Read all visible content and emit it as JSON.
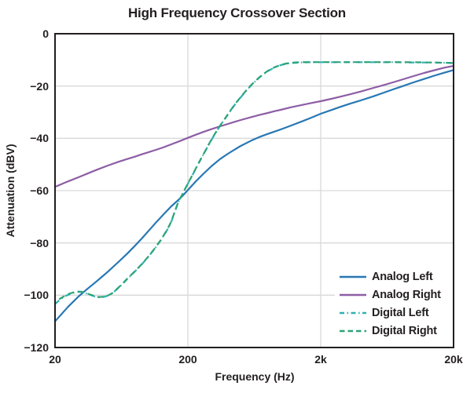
{
  "title": "High Frequency Crossover Section",
  "chart_data": {
    "type": "line",
    "title": "High Frequency Crossover Section",
    "xlabel": "Frequency (Hz)",
    "ylabel": "Attenuation (dBV)",
    "x_scale": "log",
    "xlim": [
      20,
      20000
    ],
    "ylim": [
      -120,
      0
    ],
    "grid": {
      "x_gridlines": [
        200,
        2000
      ],
      "y_gridlines": [
        -20,
        -40,
        -60,
        -80,
        -100
      ],
      "color": "#d9d9d9"
    },
    "frame_color": "#231f20",
    "x_ticks": [
      {
        "value": 20,
        "label": "20"
      },
      {
        "value": 200,
        "label": "200"
      },
      {
        "value": 2000,
        "label": "2k"
      },
      {
        "value": 20000,
        "label": "20k"
      }
    ],
    "y_ticks": [
      {
        "value": 0,
        "label": "0"
      },
      {
        "value": -20,
        "label": "−20"
      },
      {
        "value": -40,
        "label": "−40"
      },
      {
        "value": -60,
        "label": "−60"
      },
      {
        "value": -80,
        "label": "−80"
      },
      {
        "value": -100,
        "label": "−100"
      },
      {
        "value": -120,
        "label": "−120"
      }
    ],
    "legend": {
      "position": "lower right"
    },
    "series": [
      {
        "name": "Analog Left",
        "color": "#2777b4",
        "dash": "solid",
        "points": [
          [
            20,
            -110
          ],
          [
            25,
            -104.5
          ],
          [
            30,
            -100.5
          ],
          [
            35,
            -97.6
          ],
          [
            40,
            -95.2
          ],
          [
            45,
            -93
          ],
          [
            50,
            -91
          ],
          [
            60,
            -87.3
          ],
          [
            70,
            -84.1
          ],
          [
            80,
            -81.1
          ],
          [
            90,
            -78.3
          ],
          [
            100,
            -75.7
          ],
          [
            115,
            -72.2
          ],
          [
            130,
            -69.3
          ],
          [
            150,
            -66
          ],
          [
            165,
            -64.1
          ],
          [
            180,
            -62.3
          ],
          [
            200,
            -59.8
          ],
          [
            230,
            -56.4
          ],
          [
            260,
            -53.7
          ],
          [
            300,
            -50.7
          ],
          [
            350,
            -47.9
          ],
          [
            400,
            -45.9
          ],
          [
            450,
            -44.3
          ],
          [
            500,
            -42.9
          ],
          [
            600,
            -40.9
          ],
          [
            700,
            -39.4
          ],
          [
            800,
            -38.3
          ],
          [
            900,
            -37.4
          ],
          [
            1000,
            -36.6
          ],
          [
            1200,
            -35.1
          ],
          [
            1400,
            -33.8
          ],
          [
            1700,
            -32.1
          ],
          [
            2000,
            -30.6
          ],
          [
            2400,
            -29.2
          ],
          [
            2800,
            -28
          ],
          [
            3300,
            -26.8
          ],
          [
            4000,
            -25.5
          ],
          [
            5000,
            -23.9
          ],
          [
            6000,
            -22.5
          ],
          [
            7000,
            -21.3
          ],
          [
            8000,
            -20.3
          ],
          [
            10000,
            -18.6
          ],
          [
            12000,
            -17.3
          ],
          [
            14000,
            -16.2
          ],
          [
            17000,
            -14.9
          ],
          [
            20000,
            -13.9
          ]
        ]
      },
      {
        "name": "Analog Right",
        "color": "#8d5da5",
        "dash": "solid",
        "points": [
          [
            20,
            -58.6
          ],
          [
            25,
            -56.5
          ],
          [
            30,
            -54.9
          ],
          [
            35,
            -53.5
          ],
          [
            40,
            -52.3
          ],
          [
            50,
            -50.4
          ],
          [
            60,
            -49
          ],
          [
            70,
            -47.9
          ],
          [
            80,
            -47
          ],
          [
            90,
            -46.1
          ],
          [
            100,
            -45.4
          ],
          [
            115,
            -44.4
          ],
          [
            130,
            -43.5
          ],
          [
            150,
            -42.3
          ],
          [
            175,
            -41
          ],
          [
            200,
            -39.8
          ],
          [
            230,
            -38.6
          ],
          [
            260,
            -37.6
          ],
          [
            300,
            -36.5
          ],
          [
            350,
            -35.4
          ],
          [
            400,
            -34.5
          ],
          [
            450,
            -33.7
          ],
          [
            500,
            -33
          ],
          [
            600,
            -31.9
          ],
          [
            700,
            -31
          ],
          [
            800,
            -30.3
          ],
          [
            900,
            -29.6
          ],
          [
            1000,
            -29.1
          ],
          [
            1200,
            -28.1
          ],
          [
            1400,
            -27.4
          ],
          [
            1700,
            -26.5
          ],
          [
            2000,
            -25.8
          ],
          [
            2400,
            -24.9
          ],
          [
            2800,
            -24.1
          ],
          [
            3300,
            -23.2
          ],
          [
            4000,
            -22.1
          ],
          [
            5000,
            -20.7
          ],
          [
            6000,
            -19.6
          ],
          [
            7000,
            -18.6
          ],
          [
            8000,
            -17.7
          ],
          [
            10000,
            -16.2
          ],
          [
            12000,
            -15
          ],
          [
            14000,
            -14.1
          ],
          [
            17000,
            -13
          ],
          [
            20000,
            -12.3
          ]
        ]
      },
      {
        "name": "Digital Left",
        "color": "#30b0b4",
        "dash": "dashdot",
        "points": [
          [
            20,
            -103.4
          ],
          [
            22,
            -101.5
          ],
          [
            24,
            -100.3
          ],
          [
            26,
            -99.5
          ],
          [
            28,
            -99
          ],
          [
            30,
            -98.7
          ],
          [
            32,
            -98.8
          ],
          [
            34,
            -99.2
          ],
          [
            36,
            -99.7
          ],
          [
            38,
            -100.1
          ],
          [
            40,
            -100.5
          ],
          [
            43,
            -100.8
          ],
          [
            46,
            -100.7
          ],
          [
            50,
            -100.2
          ],
          [
            54,
            -99.3
          ],
          [
            58,
            -97.9
          ],
          [
            63,
            -96.2
          ],
          [
            70,
            -93.8
          ],
          [
            80,
            -90.9
          ],
          [
            90,
            -88.2
          ],
          [
            100,
            -85.5
          ],
          [
            112,
            -82.4
          ],
          [
            125,
            -79
          ],
          [
            140,
            -75
          ],
          [
            150,
            -71.9
          ],
          [
            160,
            -67.9
          ],
          [
            170,
            -64.2
          ],
          [
            180,
            -61.9
          ],
          [
            190,
            -59.6
          ],
          [
            200,
            -57.4
          ],
          [
            220,
            -53.4
          ],
          [
            240,
            -49.7
          ],
          [
            265,
            -45.7
          ],
          [
            290,
            -42
          ],
          [
            320,
            -38.3
          ],
          [
            350,
            -35.2
          ],
          [
            375,
            -33
          ],
          [
            400,
            -30.9
          ],
          [
            430,
            -28.6
          ],
          [
            460,
            -26.6
          ],
          [
            500,
            -24.3
          ],
          [
            550,
            -21.8
          ],
          [
            600,
            -19.7
          ],
          [
            650,
            -18
          ],
          [
            700,
            -16.5
          ],
          [
            750,
            -15.3
          ],
          [
            800,
            -14.3
          ],
          [
            900,
            -12.9
          ],
          [
            1000,
            -12
          ],
          [
            1100,
            -11.5
          ],
          [
            1200,
            -11.2
          ],
          [
            1400,
            -11
          ],
          [
            1700,
            -10.9
          ],
          [
            2000,
            -10.9
          ],
          [
            2500,
            -10.9
          ],
          [
            3000,
            -10.9
          ],
          [
            4000,
            -10.9
          ],
          [
            5000,
            -10.9
          ],
          [
            7000,
            -10.9
          ],
          [
            10000,
            -11
          ],
          [
            14000,
            -11
          ],
          [
            20000,
            -11.2
          ]
        ]
      },
      {
        "name": "Digital Right",
        "color": "#2ca377",
        "dash": "dashed",
        "points": [
          [
            20,
            -103
          ],
          [
            22,
            -101.2
          ],
          [
            24,
            -100.1
          ],
          [
            26,
            -99.3
          ],
          [
            28,
            -98.8
          ],
          [
            30,
            -98.6
          ],
          [
            32,
            -98.7
          ],
          [
            34,
            -99.1
          ],
          [
            36,
            -99.6
          ],
          [
            38,
            -100
          ],
          [
            40,
            -100.4
          ],
          [
            43,
            -100.7
          ],
          [
            46,
            -100.6
          ],
          [
            50,
            -100.1
          ],
          [
            54,
            -99.2
          ],
          [
            58,
            -97.8
          ],
          [
            63,
            -96.1
          ],
          [
            70,
            -93.7
          ],
          [
            80,
            -90.8
          ],
          [
            90,
            -88.1
          ],
          [
            100,
            -85.4
          ],
          [
            112,
            -82.3
          ],
          [
            125,
            -78.9
          ],
          [
            140,
            -74.9
          ],
          [
            150,
            -71.8
          ],
          [
            160,
            -67.8
          ],
          [
            170,
            -64.1
          ],
          [
            180,
            -61.8
          ],
          [
            190,
            -59.5
          ],
          [
            200,
            -57.3
          ],
          [
            220,
            -53.3
          ],
          [
            240,
            -49.6
          ],
          [
            265,
            -45.6
          ],
          [
            290,
            -41.9
          ],
          [
            320,
            -38.2
          ],
          [
            350,
            -35.1
          ],
          [
            375,
            -32.9
          ],
          [
            400,
            -30.8
          ],
          [
            430,
            -28.5
          ],
          [
            460,
            -26.5
          ],
          [
            500,
            -24.2
          ],
          [
            550,
            -21.7
          ],
          [
            600,
            -19.6
          ],
          [
            650,
            -17.9
          ],
          [
            700,
            -16.4
          ],
          [
            750,
            -15.2
          ],
          [
            800,
            -14.2
          ],
          [
            900,
            -12.8
          ],
          [
            1000,
            -11.9
          ],
          [
            1100,
            -11.4
          ],
          [
            1200,
            -11.1
          ],
          [
            1400,
            -10.9
          ],
          [
            1700,
            -10.85
          ],
          [
            2000,
            -10.85
          ],
          [
            2500,
            -10.85
          ],
          [
            3000,
            -10.85
          ],
          [
            4000,
            -10.85
          ],
          [
            5000,
            -10.85
          ],
          [
            7000,
            -10.85
          ],
          [
            10000,
            -10.9
          ],
          [
            14000,
            -11
          ],
          [
            20000,
            -11.2
          ]
        ]
      }
    ]
  }
}
